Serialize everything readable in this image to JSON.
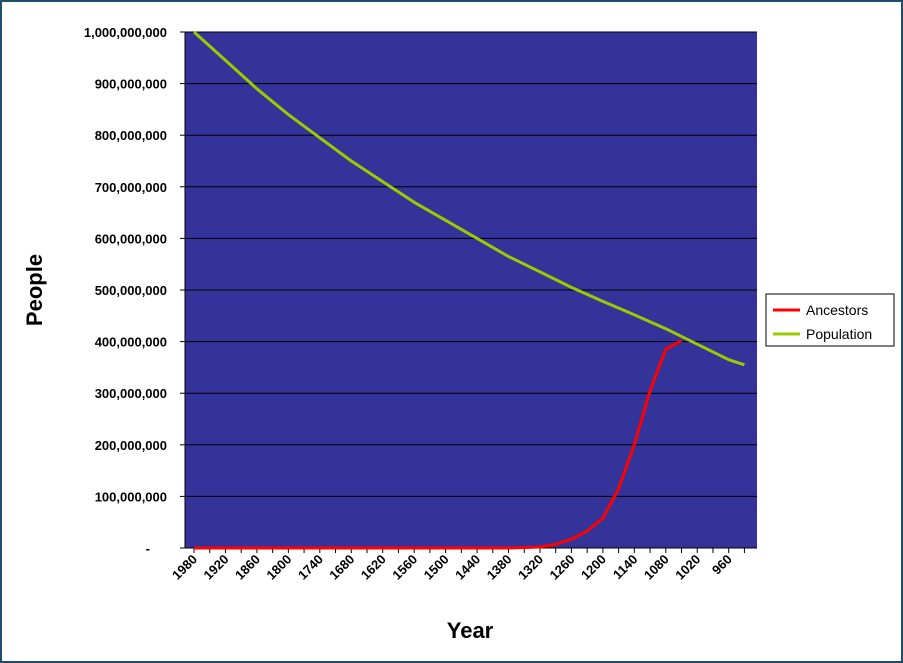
{
  "chart_data": {
    "type": "line",
    "xlabel": "Year",
    "ylabel": "People",
    "ylim": [
      0,
      1000000000
    ],
    "y_ticks": [
      {
        "value": 0,
        "label": "-"
      },
      {
        "value": 100000000,
        "label": "100,000,000"
      },
      {
        "value": 200000000,
        "label": "200,000,000"
      },
      {
        "value": 300000000,
        "label": "300,000,000"
      },
      {
        "value": 400000000,
        "label": "400,000,000"
      },
      {
        "value": 500000000,
        "label": "500,000,000"
      },
      {
        "value": 600000000,
        "label": "600,000,000"
      },
      {
        "value": 700000000,
        "label": "700,000,000"
      },
      {
        "value": 800000000,
        "label": "800,000,000"
      },
      {
        "value": 900000000,
        "label": "900,000,000"
      },
      {
        "value": 1000000000,
        "label": "1,000,000,000"
      }
    ],
    "x_tick_labels": [
      "1980",
      "1920",
      "1860",
      "1800",
      "1740",
      "1680",
      "1620",
      "1560",
      "1500",
      "1440",
      "1380",
      "1320",
      "1260",
      "1200",
      "1140",
      "1080",
      "1020",
      "960"
    ],
    "x_direction": "descending",
    "grid": "horizontal",
    "legend_position": "right",
    "plot_background": "#333399",
    "series": [
      {
        "name": "Ancestors",
        "color": "#ff0000",
        "points": [
          [
            1980,
            0
          ],
          [
            1950,
            0
          ],
          [
            1920,
            0
          ],
          [
            1890,
            0
          ],
          [
            1860,
            0
          ],
          [
            1830,
            0
          ],
          [
            1800,
            0
          ],
          [
            1770,
            0
          ],
          [
            1740,
            0
          ],
          [
            1710,
            0
          ],
          [
            1680,
            0
          ],
          [
            1650,
            0
          ],
          [
            1620,
            0
          ],
          [
            1590,
            0
          ],
          [
            1560,
            0
          ],
          [
            1530,
            0
          ],
          [
            1500,
            0
          ],
          [
            1470,
            0
          ],
          [
            1440,
            0
          ],
          [
            1410,
            0
          ],
          [
            1380,
            0
          ],
          [
            1350,
            1000000
          ],
          [
            1320,
            2000000
          ],
          [
            1290,
            7000000
          ],
          [
            1260,
            17000000
          ],
          [
            1230,
            33000000
          ],
          [
            1200,
            58000000
          ],
          [
            1170,
            115000000
          ],
          [
            1140,
            200000000
          ],
          [
            1110,
            305000000
          ],
          [
            1080,
            385000000
          ],
          [
            1050,
            402000000
          ]
        ]
      },
      {
        "name": "Population",
        "color": "#99cc00",
        "points": [
          [
            1980,
            1000000000
          ],
          [
            1920,
            945000000
          ],
          [
            1860,
            890000000
          ],
          [
            1800,
            840000000
          ],
          [
            1740,
            795000000
          ],
          [
            1680,
            750000000
          ],
          [
            1620,
            710000000
          ],
          [
            1560,
            670000000
          ],
          [
            1500,
            635000000
          ],
          [
            1440,
            600000000
          ],
          [
            1380,
            565000000
          ],
          [
            1320,
            535000000
          ],
          [
            1260,
            505000000
          ],
          [
            1200,
            478000000
          ],
          [
            1140,
            452000000
          ],
          [
            1080,
            425000000
          ],
          [
            1020,
            395000000
          ],
          [
            960,
            365000000
          ],
          [
            930,
            355000000
          ]
        ]
      }
    ]
  }
}
